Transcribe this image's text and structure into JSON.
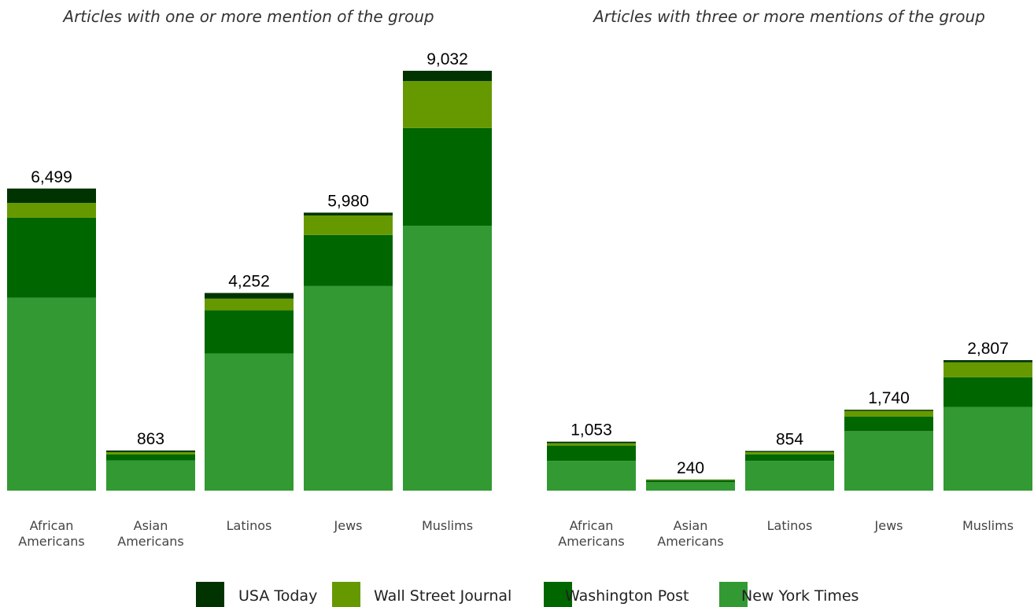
{
  "chart_data": [
    {
      "type": "bar",
      "stacked": true,
      "title": "Articles with one or more mention of the group",
      "categories": [
        "African\nAmericans",
        "Asian\nAmericans",
        "Latinos",
        "Jews",
        "Muslims"
      ],
      "totals_labels": [
        "6,499",
        "863",
        "4,252",
        "5,980",
        "9,032"
      ],
      "ylim": [
        0,
        9032
      ],
      "series": [
        {
          "name": "New York Times",
          "values": [
            4150,
            650,
            2950,
            4400,
            5700
          ]
        },
        {
          "name": "Washington Post",
          "values": [
            1720,
            130,
            930,
            1100,
            2100
          ]
        },
        {
          "name": "Wall Street Journal",
          "values": [
            320,
            50,
            250,
            420,
            1010
          ]
        },
        {
          "name": "USA Today",
          "values": [
            309,
            33,
            122,
            60,
            222
          ]
        }
      ]
    },
    {
      "type": "bar",
      "stacked": true,
      "title": "Articles with three or more mentions of the group",
      "categories": [
        "African\nAmericans",
        "Asian\nAmericans",
        "Latinos",
        "Jews",
        "Muslims"
      ],
      "totals_labels": [
        "1,053",
        "240",
        "854",
        "1,740",
        "2,807"
      ],
      "ylim": [
        0,
        9032
      ],
      "series": [
        {
          "name": "New York Times",
          "values": [
            640,
            180,
            640,
            1280,
            1800
          ]
        },
        {
          "name": "Washington Post",
          "values": [
            330,
            40,
            140,
            310,
            640
          ]
        },
        {
          "name": "Wall Street Journal",
          "values": [
            50,
            15,
            50,
            125,
            320
          ]
        },
        {
          "name": "USA Today",
          "values": [
            33,
            5,
            24,
            25,
            47
          ]
        }
      ]
    }
  ],
  "colors": {
    "USA Today": "#003300",
    "Wall Street Journal": "#669900",
    "Washington Post": "#006600",
    "New York Times": "#339933"
  },
  "legend": {
    "placement": "bottom",
    "items": [
      {
        "label": "USA Today",
        "series": "USA Today"
      },
      {
        "label": "Wall Street Journal",
        "series": "Wall Street Journal"
      },
      {
        "label": "Washington Post",
        "series": "Washington Post"
      },
      {
        "label": "New York Times",
        "series": "New York Times"
      }
    ]
  }
}
